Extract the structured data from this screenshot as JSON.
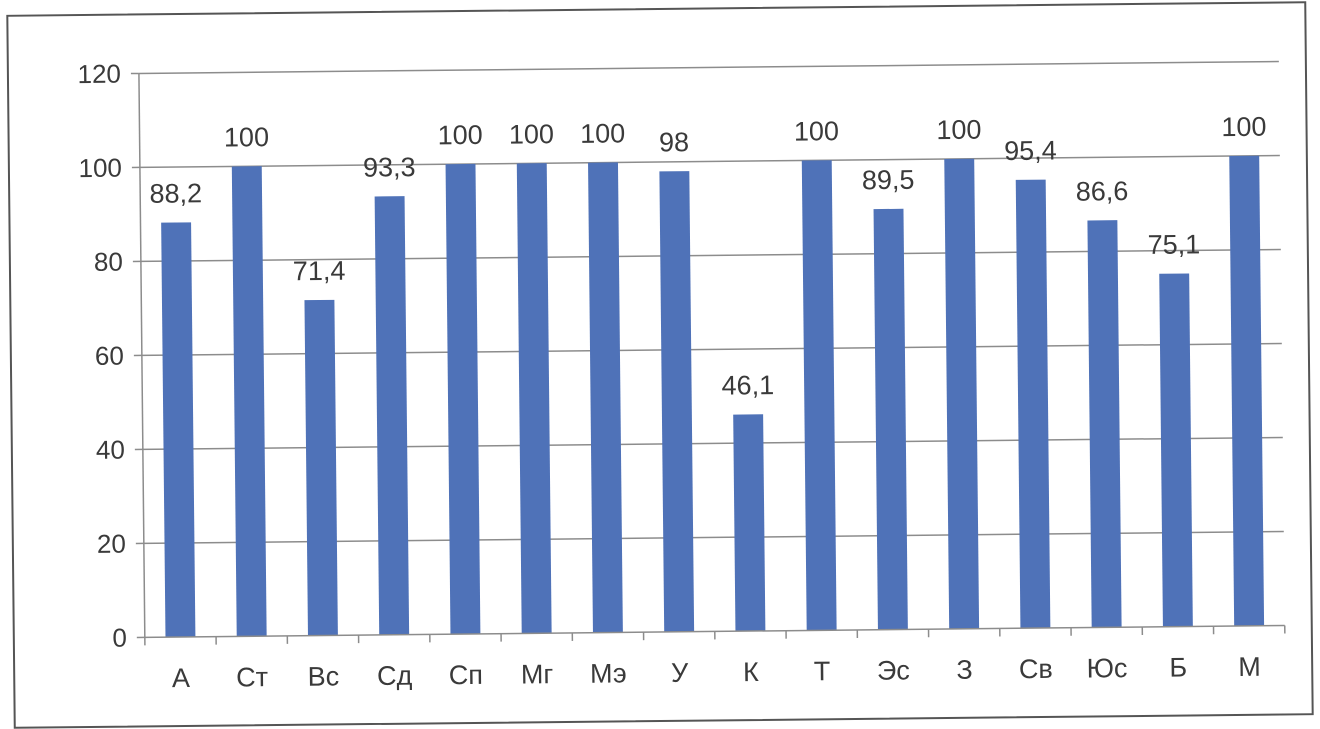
{
  "chart_data": {
    "type": "bar",
    "categories": [
      "А",
      "Ст",
      "Вс",
      "Сд",
      "Сп",
      "Мг",
      "Мэ",
      "У",
      "К",
      "Т",
      "Эс",
      "З",
      "Св",
      "Юс",
      "Б",
      "М"
    ],
    "values": [
      88.2,
      100,
      71.4,
      93.3,
      100,
      100,
      100,
      98,
      46.1,
      100,
      89.5,
      100,
      95.4,
      86.6,
      75.1,
      100
    ],
    "data_labels": [
      "88,2",
      "100",
      "71,4",
      "93,3",
      "100",
      "100",
      "100",
      "98",
      "46,1",
      "100",
      "89,5",
      "100",
      "95,4",
      "86,6",
      "75,1",
      "100"
    ],
    "yticks": [
      "0",
      "20",
      "40",
      "60",
      "80",
      "100",
      "120"
    ],
    "ylim": [
      0,
      120
    ],
    "grid": true,
    "legend": "none",
    "title": "",
    "xlabel": "",
    "ylabel": "",
    "bar_color": "#4f72b8",
    "grid_color": "#8c8c8c",
    "axis_color": "#8c8c8c"
  }
}
